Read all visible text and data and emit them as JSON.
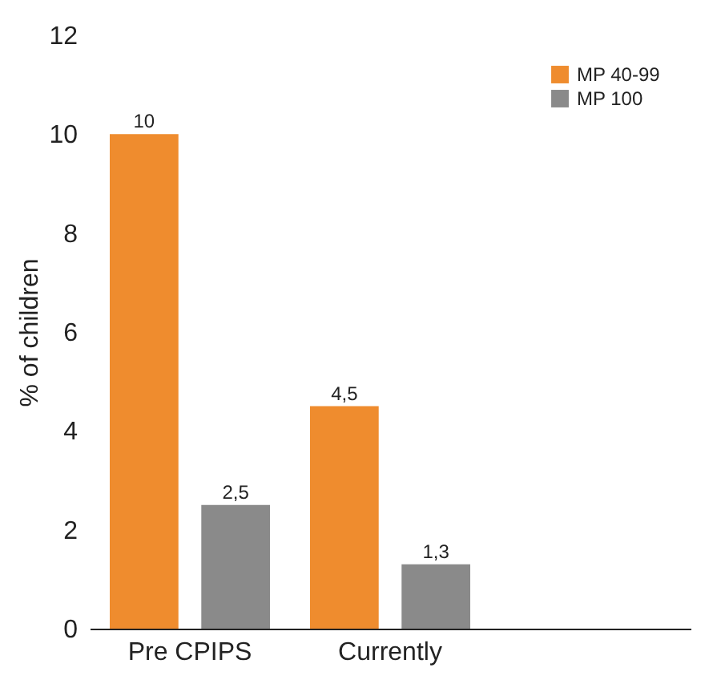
{
  "chart_data": {
    "type": "bar",
    "ylabel": "% of children",
    "categories": [
      "Pre CPIPS",
      "Currently",
      null
    ],
    "series": [
      {
        "name": "MP 40-99",
        "color": "#ef8c2e",
        "values": [
          10,
          4.5,
          null
        ],
        "value_labels": [
          "10",
          "4,5",
          null
        ]
      },
      {
        "name": "MP 100",
        "color": "#8a8a8a",
        "values": [
          2.5,
          1.3,
          null
        ],
        "value_labels": [
          "2,5",
          "1,3",
          null
        ]
      }
    ],
    "ylim": [
      0,
      12
    ],
    "yticks": [
      0,
      2,
      4,
      6,
      8,
      10,
      12
    ],
    "grid": false,
    "legend": "top right"
  }
}
